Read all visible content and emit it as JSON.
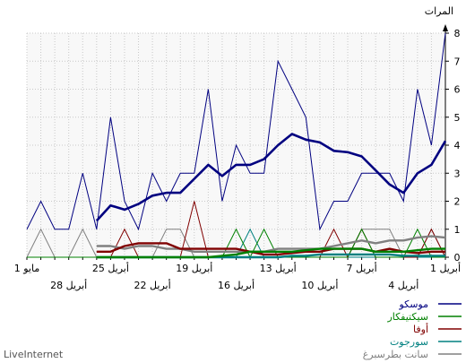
{
  "chart_data": {
    "type": "line",
    "ylabel": "المرات",
    "ylim": [
      0,
      8
    ],
    "yticks": [
      0,
      1,
      2,
      3,
      4,
      5,
      6,
      7,
      8
    ],
    "grid": true,
    "legend_position": "bottom-right",
    "x_ticks_row1": [
      {
        "day": 0,
        "label": "1 أبريل"
      },
      {
        "day": 6,
        "label": "7 أبريل"
      },
      {
        "day": 12,
        "label": "13 أبريل"
      },
      {
        "day": 18,
        "label": "19 أبريل"
      },
      {
        "day": 24,
        "label": "25 أبريل"
      },
      {
        "day": 30,
        "label": "1 مايو"
      }
    ],
    "x_ticks_row2": [
      {
        "day": 3,
        "label": "4 أبريل"
      },
      {
        "day": 9,
        "label": "10 أبريل"
      },
      {
        "day": 15,
        "label": "16 أبريل"
      },
      {
        "day": 21,
        "label": "22 أبريل"
      },
      {
        "day": 27,
        "label": "28 أبريل"
      }
    ],
    "series": [
      {
        "name": "موسكو",
        "color": "#000080",
        "values": [
          8,
          4,
          6,
          2,
          3,
          3,
          3,
          2,
          2,
          1,
          5,
          6,
          7,
          3,
          3,
          4,
          2,
          6,
          3,
          3,
          2,
          3,
          1,
          2,
          5,
          1,
          3,
          1,
          1,
          2,
          1
        ],
        "average": [
          4.15,
          3.3,
          3,
          2.3,
          2.6,
          3.1,
          3.6,
          3.75,
          3.8,
          4.1,
          4.2,
          4.4,
          4,
          3.5,
          3.3,
          3.3,
          2.9,
          3.3,
          2.8,
          2.3,
          2.3,
          2.2,
          1.9,
          1.7,
          1.85,
          1.3
        ]
      },
      {
        "name": "سيكتيفكار",
        "color": "#008000",
        "values": [
          0,
          0,
          1,
          0,
          0,
          0,
          1,
          0,
          0,
          0,
          0,
          0,
          0,
          1,
          0,
          1,
          0,
          0,
          0,
          0,
          0,
          0,
          0,
          0,
          0,
          0,
          0,
          0,
          0,
          0,
          0
        ],
        "average": [
          0.3,
          0.3,
          0.25,
          0.2,
          0.2,
          0.2,
          0.3,
          0.3,
          0.3,
          0.3,
          0.25,
          0.2,
          0.2,
          0.2,
          0.2,
          0.1,
          0.05,
          0,
          0,
          0,
          0,
          0,
          0,
          0,
          0,
          0
        ]
      },
      {
        "name": "أوفا",
        "color": "#800000",
        "values": [
          0,
          1,
          0,
          0,
          0,
          0,
          1,
          0,
          1,
          0,
          0,
          0,
          0,
          0,
          0,
          0,
          0,
          0,
          2,
          0,
          0,
          0,
          0,
          1,
          0,
          0,
          0,
          0,
          0,
          0,
          0
        ],
        "average": [
          0.2,
          0.2,
          0.15,
          0.2,
          0.3,
          0.2,
          0.3,
          0.3,
          0.3,
          0.2,
          0.2,
          0.15,
          0.1,
          0.1,
          0.2,
          0.3,
          0.3,
          0.3,
          0.3,
          0.3,
          0.5,
          0.5,
          0.5,
          0.4,
          0.2,
          0.2
        ]
      },
      {
        "name": "سورجوت",
        "color": "#008080",
        "values": [
          0,
          0,
          0,
          0,
          0,
          0,
          0,
          0,
          0,
          0,
          0,
          0,
          0,
          0,
          1,
          0,
          0,
          0,
          0,
          0,
          0,
          0,
          0,
          0,
          0,
          0,
          0,
          0,
          0,
          0,
          0
        ],
        "average": [
          0.05,
          0.05,
          0.05,
          0.05,
          0.1,
          0.1,
          0.1,
          0.1,
          0.1,
          0.1,
          0.05,
          0.05,
          0,
          0,
          0,
          0,
          0,
          0,
          0,
          0,
          0,
          0,
          0,
          0,
          0,
          0
        ]
      },
      {
        "name": "سانت بطرسبرغ",
        "color": "#808080",
        "values": [
          0,
          1,
          0,
          0,
          1,
          1,
          1,
          0,
          0,
          0,
          0,
          0,
          0,
          0,
          0,
          0,
          0,
          0,
          0,
          1,
          1,
          0,
          0,
          0,
          0,
          0,
          1,
          0,
          0,
          1,
          0
        ],
        "average": [
          0.7,
          0.75,
          0.7,
          0.6,
          0.6,
          0.5,
          0.6,
          0.5,
          0.4,
          0.3,
          0.3,
          0.3,
          0.3,
          0.2,
          0.2,
          0.2,
          0.2,
          0.2,
          0.2,
          0.3,
          0.3,
          0.4,
          0.4,
          0.3,
          0.4,
          0.4
        ]
      }
    ]
  },
  "watermark": "LiveInternet"
}
